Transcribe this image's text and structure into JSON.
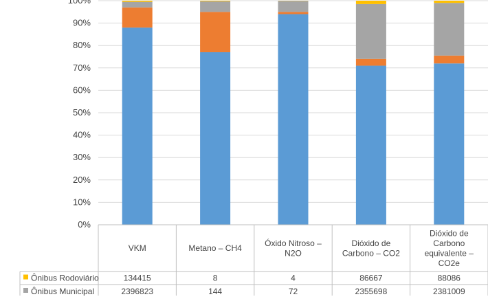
{
  "chart_data": {
    "type": "bar",
    "stacked": "percent",
    "categories": [
      [
        "VKM"
      ],
      [
        "Metano – CH4"
      ],
      [
        "Óxido Nitroso –",
        "N2O"
      ],
      [
        "Dióxido de",
        "Carbono – CO2"
      ],
      [
        "Dióxido de",
        "Carbono",
        "equivalente –",
        "CO2e"
      ]
    ],
    "ylim": [
      0,
      100
    ],
    "yticks": [
      "0%",
      "10%",
      "20%",
      "30%",
      "40%",
      "50%",
      "60%",
      "70%",
      "80%",
      "90%",
      "100%"
    ],
    "grid": true,
    "legend": "data-table-left",
    "series_percent": [
      {
        "key": "blue",
        "color": "#5b9bd5",
        "values": [
          88,
          77,
          94,
          71,
          72
        ]
      },
      {
        "key": "orange",
        "color": "#ed7d31",
        "values": [
          9,
          18,
          1,
          3,
          3.5
        ]
      },
      {
        "key": "gray",
        "color": "#a5a5a5",
        "values": [
          2.5,
          4.7,
          4.9,
          24.5,
          23.5
        ]
      },
      {
        "key": "yellow",
        "color": "#ffc000",
        "values": [
          0.5,
          0.3,
          0.1,
          1.5,
          1.0
        ]
      }
    ],
    "table_rows": [
      {
        "name": "Ônibus Rodoviário",
        "color": "#ffc000",
        "values": [
          "134415",
          "8",
          "4",
          "86667",
          "88086"
        ]
      },
      {
        "name": "Ônibus Municipal",
        "color": "#a5a5a5",
        "values": [
          "2396823",
          "144",
          "72",
          "2355698",
          "2381009"
        ]
      }
    ]
  }
}
